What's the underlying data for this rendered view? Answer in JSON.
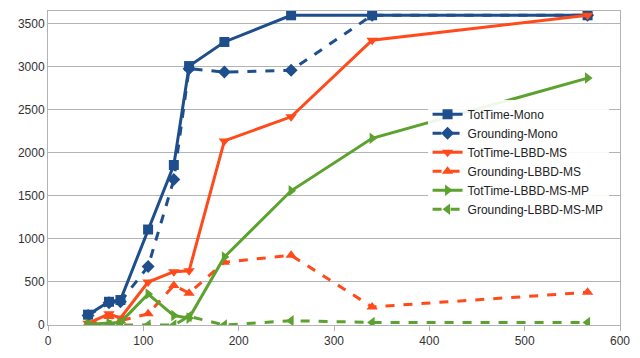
{
  "chart_data": {
    "type": "line",
    "x": [
      42,
      64,
      76,
      105,
      132,
      148,
      185,
      255,
      340,
      566
    ],
    "xlim": [
      0,
      600
    ],
    "xticks": [
      0,
      100,
      200,
      300,
      400,
      500,
      600
    ],
    "ylim": [
      0,
      3650
    ],
    "yticks": [
      0,
      500,
      1000,
      1500,
      2000,
      2500,
      3000,
      3500
    ],
    "grid": true,
    "legend": "right",
    "series": [
      {
        "name": "TotTime-Mono",
        "color": "#1f4e8c",
        "marker": "square",
        "line_style": "solid",
        "values": [
          120,
          270,
          290,
          1110,
          1860,
          3010,
          3290,
          3600,
          3600,
          3600
        ]
      },
      {
        "name": "Grounding-Mono",
        "color": "#1f4e8c",
        "marker": "diamond",
        "line_style": "dash",
        "values": [
          110,
          260,
          270,
          680,
          1690,
          2980,
          2940,
          2960,
          3600,
          3600
        ]
      },
      {
        "name": "TotTime-LBBD-MS",
        "color": "#ff4a1c",
        "marker": "triangle-down",
        "line_style": "solid",
        "values": [
          20,
          130,
          80,
          500,
          620,
          630,
          2140,
          2420,
          3310,
          3600
        ]
      },
      {
        "name": "Grounding-LBBD-MS",
        "color": "#ff4a1c",
        "marker": "triangle-up",
        "line_style": "dash",
        "values": [
          10,
          100,
          50,
          130,
          460,
          370,
          730,
          810,
          210,
          380
        ]
      },
      {
        "name": "TotTime-LBBD-MS-MP",
        "color": "#5ba22e",
        "marker": "triangle-right",
        "line_style": "solid",
        "values": [
          10,
          20,
          30,
          360,
          110,
          80,
          790,
          1560,
          2170,
          2870
        ]
      },
      {
        "name": "Grounding-LBBD-MS-MP",
        "color": "#5ba22e",
        "marker": "triangle-left",
        "line_style": "dash",
        "values": [
          0,
          0,
          0,
          0,
          0,
          100,
          0,
          50,
          30,
          30
        ]
      }
    ]
  }
}
